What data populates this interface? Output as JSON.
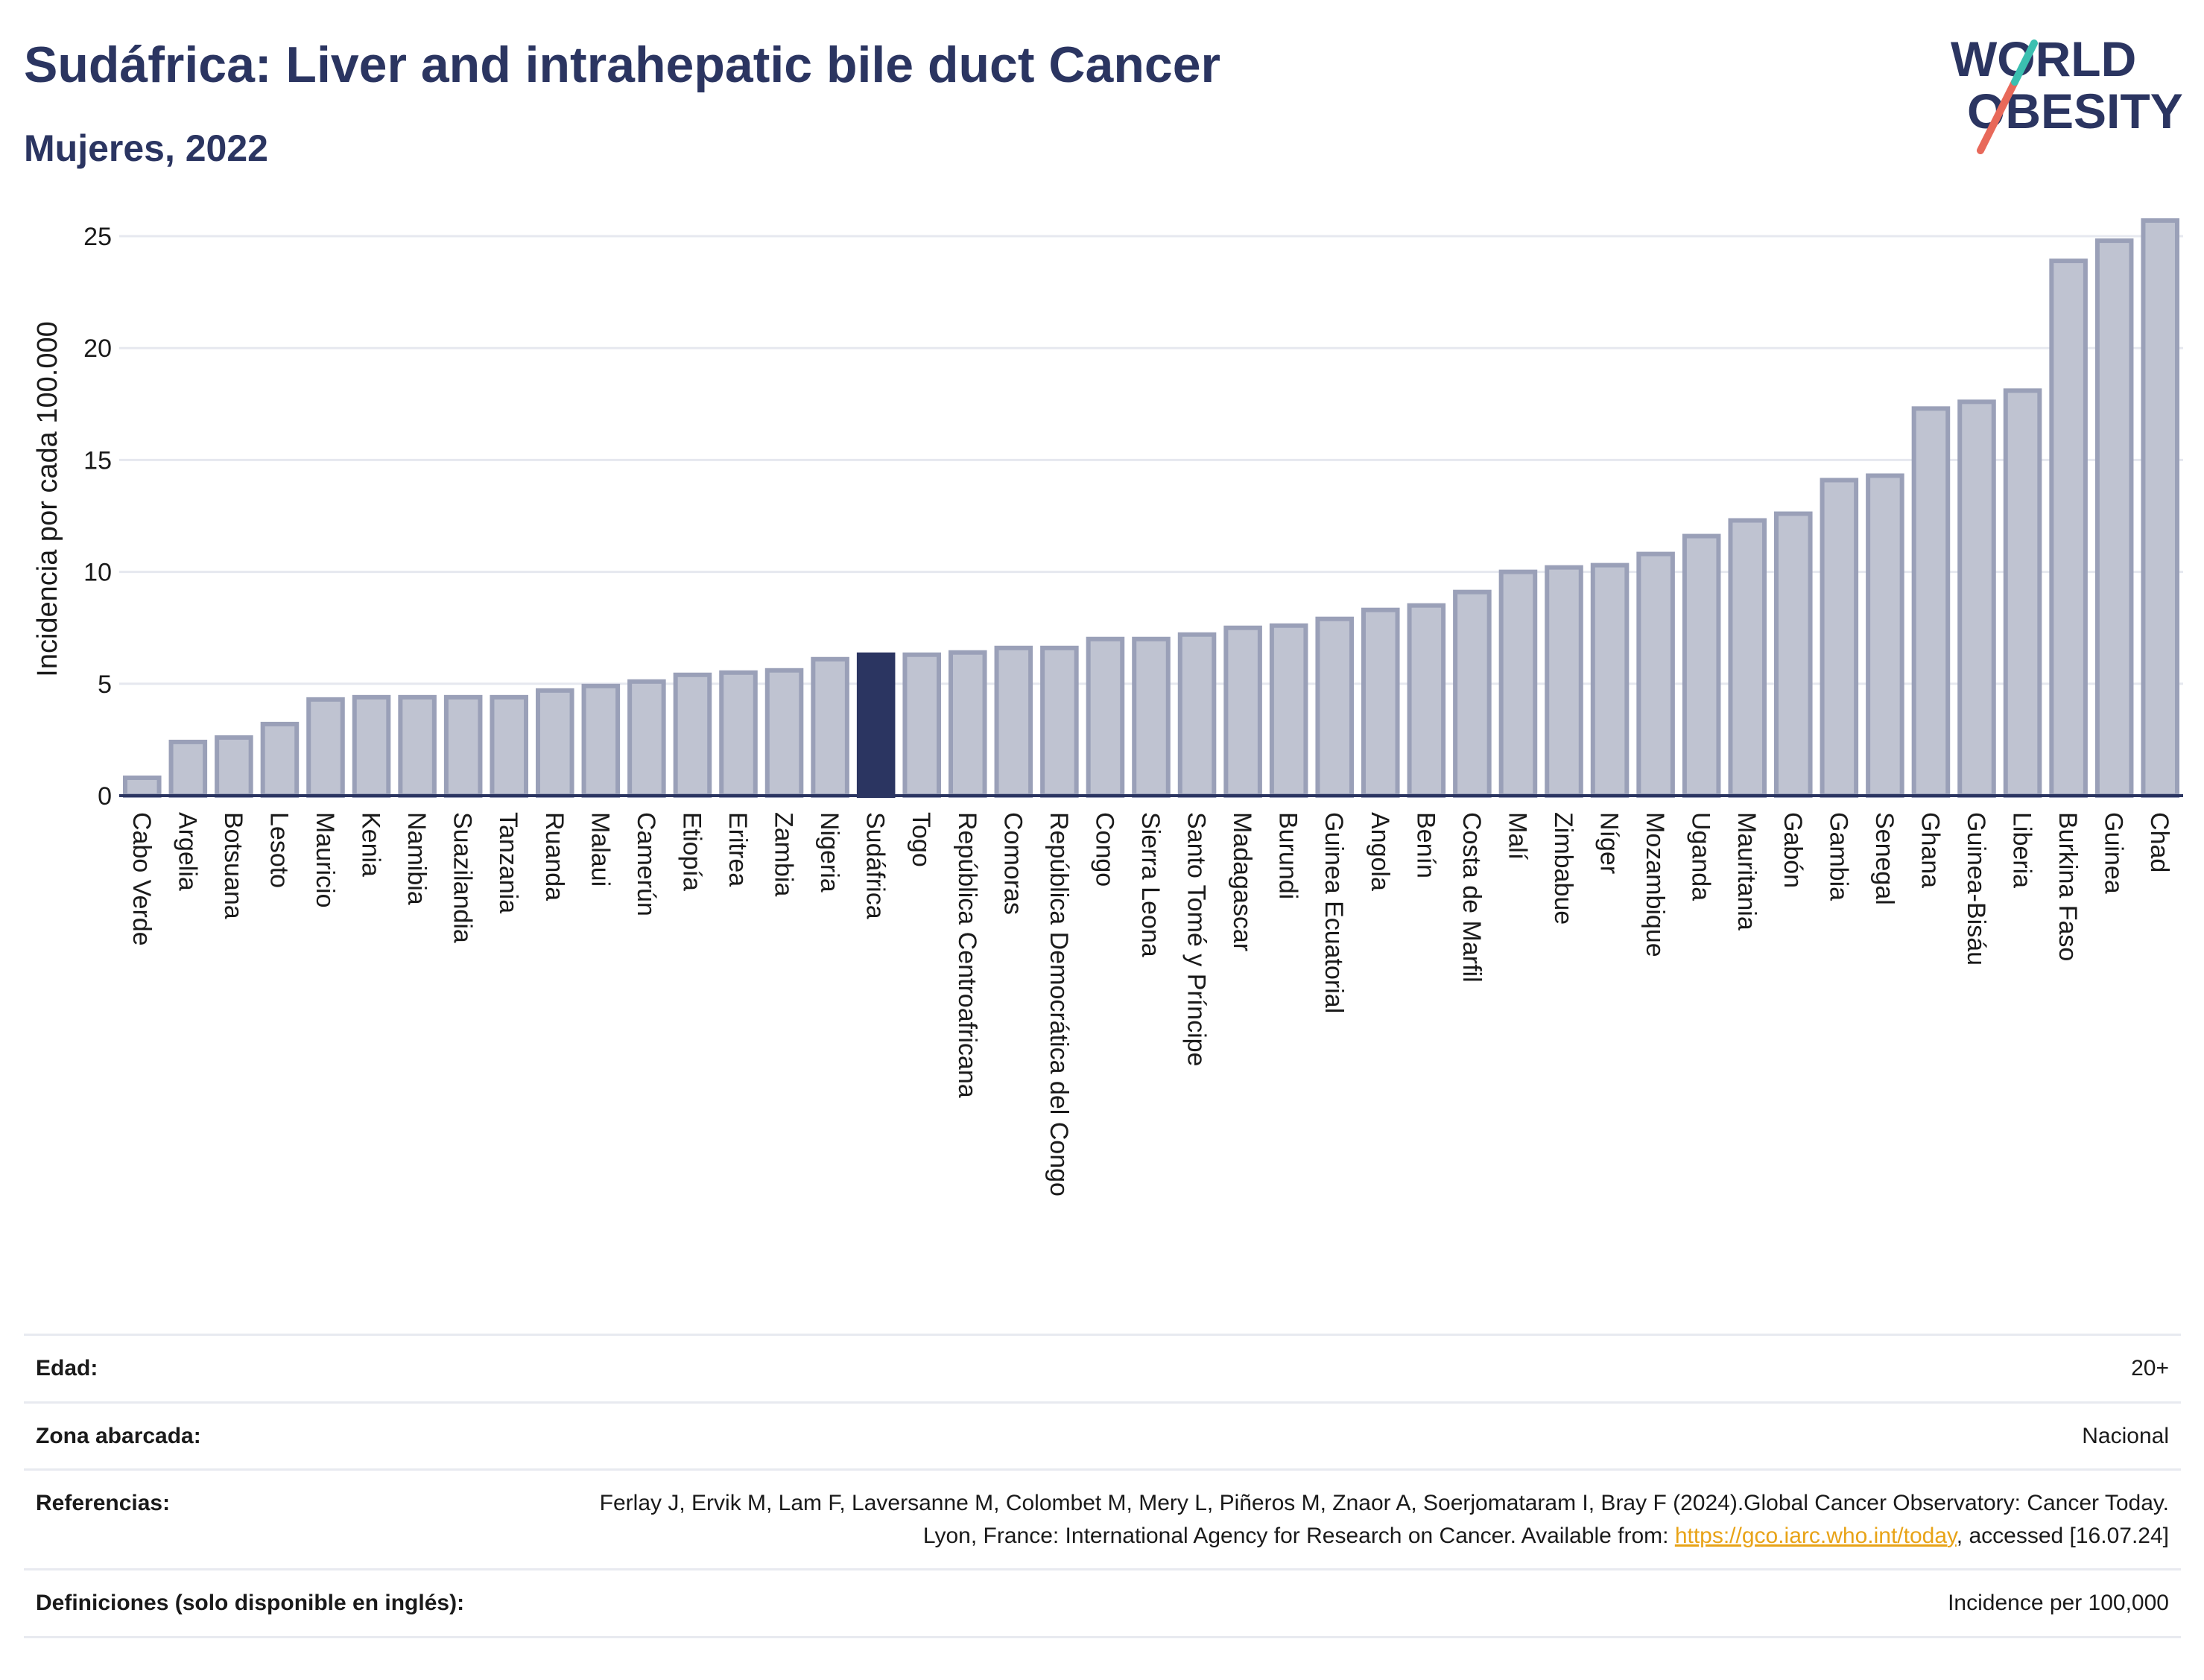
{
  "header": {
    "title": "Sudáfrica: Liver and intrahepatic bile duct Cancer",
    "subtitle": "Mujeres, 2022"
  },
  "logo": {
    "line1": "WORLD",
    "line2": "OBESITY",
    "colors": {
      "text": "#2b3561",
      "slash_red": "#e8695a",
      "slash_teal": "#3bbfb0"
    }
  },
  "chart_data": {
    "type": "bar",
    "ylabel": "Incidencia por cada 100.000",
    "xlabel": "",
    "ylim": [
      0,
      26.5
    ],
    "yticks": [
      0,
      5,
      10,
      15,
      20,
      25
    ],
    "grid": true,
    "highlight_category": "Sudáfrica",
    "colors": {
      "bar": "#bfc3d1",
      "bar_edge": "#9aa0b8",
      "highlight": "#2b3561",
      "grid": "#e6e8ef",
      "axis": "#2b3561"
    },
    "categories": [
      "Cabo Verde",
      "Argelia",
      "Botsuana",
      "Lesoto",
      "Mauricio",
      "Kenia",
      "Namibia",
      "Suazilandia",
      "Tanzania",
      "Ruanda",
      "Malaui",
      "Camerún",
      "Etiopía",
      "Eritrea",
      "Zambia",
      "Nigeria",
      "Sudáfrica",
      "Togo",
      "República Centroafricana",
      "Comoras",
      "República Democrática del Congo",
      "Congo",
      "Sierra Leona",
      "Santo Tomé y Príncipe",
      "Madagascar",
      "Burundi",
      "Guinea Ecuatorial",
      "Angola",
      "Benín",
      "Costa de Marfil",
      "Malí",
      "Zimbabue",
      "Níger",
      "Mozambique",
      "Uganda",
      "Mauritania",
      "Gabón",
      "Gambia",
      "Senegal",
      "Ghana",
      "Guinea-Bisáu",
      "Liberia",
      "Burkina Faso",
      "Guinea",
      "Chad"
    ],
    "values": [
      0.8,
      2.4,
      2.6,
      3.2,
      4.3,
      4.4,
      4.4,
      4.4,
      4.4,
      4.7,
      4.9,
      5.1,
      5.4,
      5.5,
      5.6,
      6.1,
      6.3,
      6.3,
      6.4,
      6.6,
      6.6,
      7.0,
      7.0,
      7.2,
      7.5,
      7.6,
      7.9,
      8.3,
      8.5,
      9.1,
      10.0,
      10.2,
      10.3,
      10.8,
      11.6,
      12.3,
      12.6,
      14.1,
      14.3,
      17.3,
      17.6,
      18.1,
      23.9,
      24.8,
      25.7
    ]
  },
  "info": {
    "age_label": "Edad:",
    "age_value": "20+",
    "area_label": "Zona abarcada:",
    "area_value": "Nacional",
    "refs_label": "Referencias:",
    "refs_text_before": "Ferlay J, Ervik M, Lam F, Laversanne M, Colombet M, Mery L, Piñeros M, Znaor A, Soerjomataram I, Bray F (2024).Global Cancer Observatory: Cancer Today. Lyon, France: International Agency for Research on Cancer. Available from: ",
    "refs_link": "https://gco.iarc.who.int/today",
    "refs_text_after": ", accessed [16.07.24]",
    "defs_label": "Definiciones (solo disponible en inglés):",
    "defs_value": "Incidence per 100,000"
  }
}
